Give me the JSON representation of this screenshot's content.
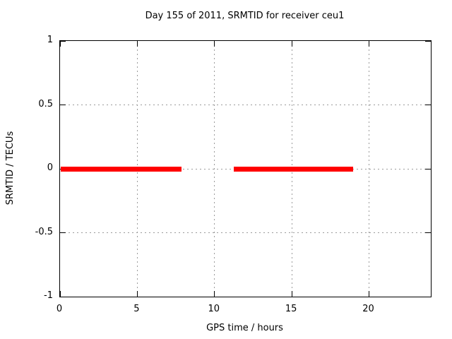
{
  "chart_data": {
    "type": "line",
    "title": "Day 155 of 2011, SRMTID for receiver ceu1",
    "xlabel": "GPS time / hours",
    "ylabel": "SRMTID / TECUs",
    "xlim": [
      0,
      24
    ],
    "ylim": [
      -1,
      1
    ],
    "x_ticks": [
      0,
      5,
      10,
      15,
      20
    ],
    "y_ticks": [
      -1,
      -0.5,
      0,
      0.5,
      1
    ],
    "grid": true,
    "legend": "none",
    "series": [
      {
        "name": "SRMTID",
        "color": "#ff0000",
        "segments": [
          {
            "x_start": 0.05,
            "x_end": 7.86,
            "y": 0
          },
          {
            "x_start": 11.25,
            "x_end": 18.95,
            "y": 0
          }
        ]
      }
    ],
    "colors": {
      "border": "#000000",
      "grid": "#9b9b9b",
      "background": "#ffffff",
      "text": "#000000"
    }
  }
}
